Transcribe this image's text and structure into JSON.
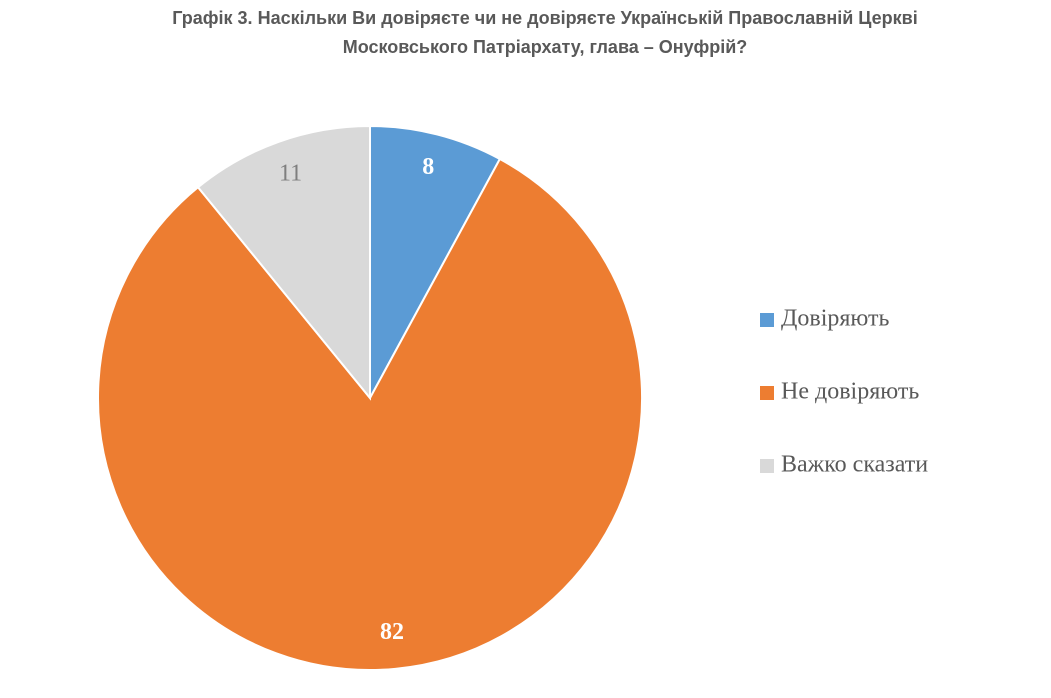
{
  "chart_data": {
    "type": "pie",
    "title": [
      "Графік 3. Наскільки Ви довіряєте чи не довіряєте Українській Православній Церкві",
      "Московського Патріархату, глава – Онуфрій?"
    ],
    "categories": [
      "Довіряють",
      "Не довіряють",
      "Важко сказати"
    ],
    "values": [
      8,
      82,
      11
    ],
    "colors": [
      "#5b9bd5",
      "#ed7d31",
      "#d9d9d9"
    ],
    "label_colors": [
      "#ffffff",
      "#ffffff",
      "#7f7f7f"
    ],
    "legend": "right"
  }
}
